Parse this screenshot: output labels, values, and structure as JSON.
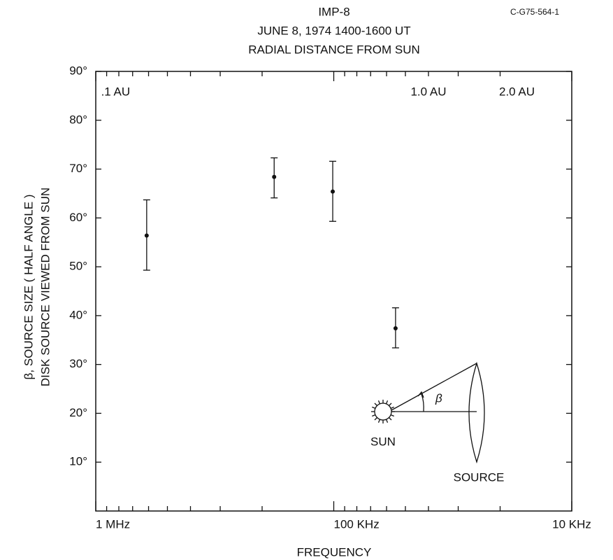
{
  "chart_data": {
    "type": "errorbar",
    "title": "IMP-8",
    "subtitle": "JUNE 8, 1974   1400-1600 UT",
    "figure_code": "C-G75-564-1",
    "x2_label": "RADIAL DISTANCE FROM SUN",
    "x_label": "FREQUENCY",
    "y_label": [
      "β, SOURCE SIZE ( HALF ANGLE )",
      "DISK SOURCE VIEWED FROM SUN"
    ],
    "x_log": true,
    "xlim": [
      1000,
      10
    ],
    "xticks": [
      {
        "value": 1000,
        "label": "1 MHz"
      },
      {
        "value": 100,
        "label": "100 KHz"
      },
      {
        "value": 10,
        "label": "10 KHz"
      }
    ],
    "x2ticks": [
      {
        "value": 950,
        "label": ".1 AU"
      },
      {
        "value": 40,
        "label": "1.0 AU"
      },
      {
        "value": 17,
        "label": "2.0 AU"
      }
    ],
    "ylim": [
      0,
      90
    ],
    "yticks": [
      {
        "value": 10,
        "label": "10°"
      },
      {
        "value": 20,
        "label": "20°"
      },
      {
        "value": 30,
        "label": "30°"
      },
      {
        "value": 40,
        "label": "40°"
      },
      {
        "value": 50,
        "label": "50°"
      },
      {
        "value": 60,
        "label": "60°"
      },
      {
        "value": 70,
        "label": "70°"
      },
      {
        "value": 80,
        "label": "80°"
      },
      {
        "value": 90,
        "label": "90°"
      }
    ],
    "color": "#111111",
    "x": [
      611,
      178,
      101,
      55
    ],
    "values": [
      56.4,
      68.4,
      65.4,
      37.4
    ],
    "upper": [
      63.7,
      72.3,
      71.6,
      41.6
    ],
    "lower": [
      49.3,
      64.1,
      59.3,
      33.4
    ],
    "annotations": {
      "sun": "SUN",
      "source": "SOURCE",
      "angle": "β"
    }
  }
}
